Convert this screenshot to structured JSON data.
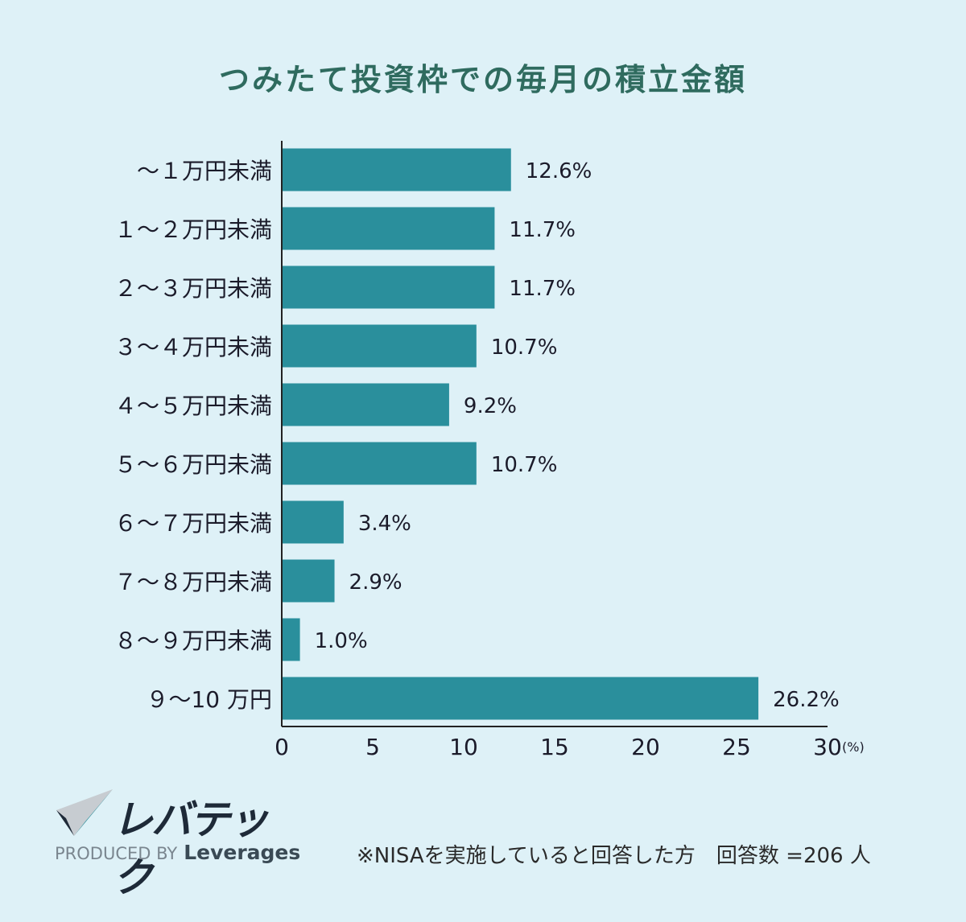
{
  "chart_data": {
    "type": "bar",
    "orientation": "horizontal",
    "title": "つみたて投資枠での毎月の積立金額",
    "categories": [
      "～１万円未満",
      "１～２万円未満",
      "２～３万円未満",
      "３～４万円未満",
      "４～５万円未満",
      "５～６万円未満",
      "６～７万円未満",
      "７～８万円未満",
      "８～９万円未満",
      "９～10 万円"
    ],
    "values": [
      12.6,
      11.7,
      11.7,
      10.7,
      9.2,
      10.7,
      3.4,
      2.9,
      1.0,
      26.2
    ],
    "value_labels": [
      "12.6%",
      "11.7%",
      "11.7%",
      "10.7%",
      "9.2%",
      "10.7%",
      "3.4%",
      "2.9%",
      "1.0%",
      "26.2%"
    ],
    "xlim": [
      0,
      30
    ],
    "x_ticks": [
      0,
      5,
      10,
      15,
      20,
      25,
      30
    ],
    "x_unit": "(%)",
    "bar_color": "#2a8f9c"
  },
  "logo": {
    "text": "レバテック",
    "produced_by": "PRODUCED BY",
    "brand": "Leverages"
  },
  "footnote": "※NISAを実施していると回答した方　回答数 =206 人"
}
